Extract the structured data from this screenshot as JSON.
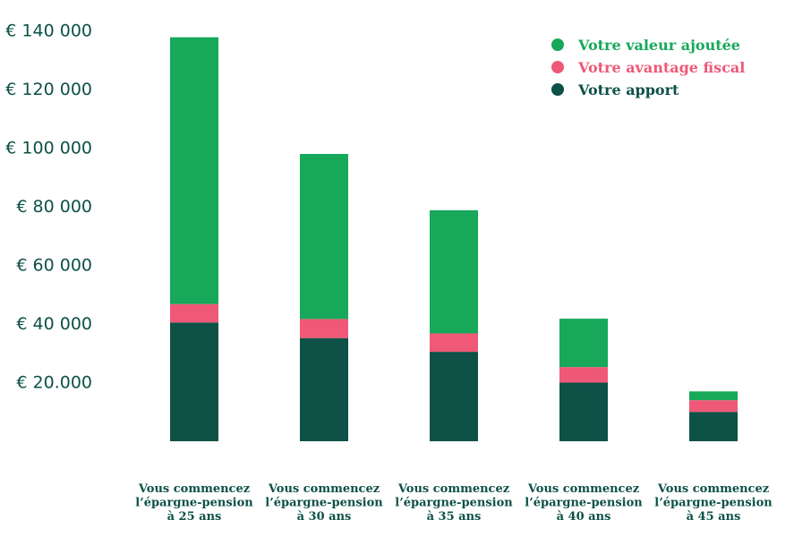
{
  "chart_data": {
    "type": "bar",
    "stacked": true,
    "categories": [
      [
        "Vous commencez",
        "l’épargne-pension",
        "à 25 ans"
      ],
      [
        "Vous commencez",
        "l’épargne-pension",
        "à 30 ans"
      ],
      [
        "Vous commencez",
        "l’épargne-pension",
        "à 35 ans"
      ],
      [
        "Vous commencez",
        "l’épargne-pension",
        "à 40 ans"
      ],
      [
        "Vous commencez",
        "l’épargne-pension",
        "à 45 ans"
      ]
    ],
    "series": [
      {
        "name": "Votre apport",
        "color": "#0d5147",
        "values": [
          40500,
          35200,
          30500,
          20000,
          10000
        ]
      },
      {
        "name": "Votre avantage fiscal",
        "color": "#ef5876",
        "values": [
          6300,
          6500,
          6300,
          5300,
          4000
        ]
      },
      {
        "name": "Votre valeur ajoutée",
        "color": "#17a85a",
        "values": [
          91000,
          56300,
          42000,
          16500,
          3000
        ]
      }
    ],
    "legend_order": [
      "Votre valeur ajoutée",
      "Votre avantage fiscal",
      "Votre apport"
    ],
    "legend_position": "top-right",
    "y_ticks": [
      {
        "value": 20000,
        "label": "€ 20.000"
      },
      {
        "value": 40000,
        "label": "€ 40 000"
      },
      {
        "value": 60000,
        "label": "€ 60 000"
      },
      {
        "value": 80000,
        "label": "€ 80 000"
      },
      {
        "value": 100000,
        "label": "€ 100 000"
      },
      {
        "value": 120000,
        "label": "€ 120 000"
      },
      {
        "value": 140000,
        "label": "€ 140 000"
      }
    ],
    "ylim": [
      0,
      140000
    ],
    "grid": false,
    "title": "",
    "xlabel": "",
    "ylabel": ""
  }
}
